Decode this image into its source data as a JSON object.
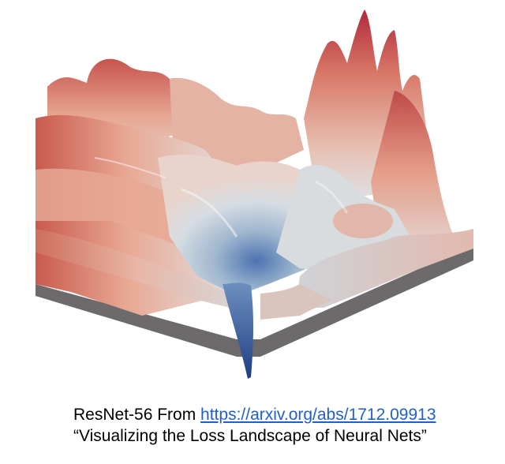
{
  "caption": {
    "line1_prefix": "ResNet-56 From ",
    "link_text": "https://arxiv.org/abs/1712.09913",
    "line2": "“Visualizing the Loss Landscape of Neural Nets”"
  },
  "colors": {
    "peak_red": "#b8303c",
    "salmon": "#e0917c",
    "light": "#dfe1e4",
    "valley_blue": "#2a5296",
    "link": "#1f5fcf"
  }
}
